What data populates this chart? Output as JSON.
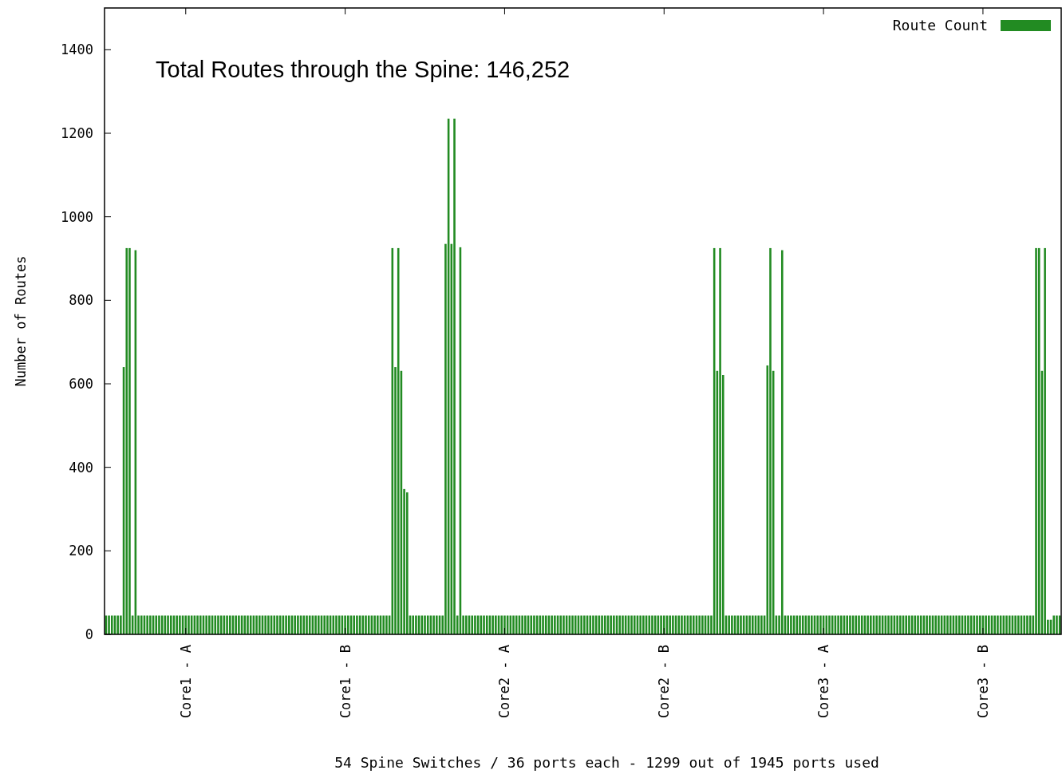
{
  "chart_data": {
    "type": "bar",
    "annotations": [
      "Total Routes through the Spine: 146,252"
    ],
    "xlabel": "54 Spine Switches / 36 ports each - 1299 out of 1945 ports used",
    "ylabel": "Number of Routes",
    "categories": [
      null,
      null,
      null,
      null,
      null,
      null,
      null,
      null,
      null,
      null,
      null,
      null,
      null,
      null,
      null,
      null,
      null,
      null,
      null,
      null,
      null,
      null,
      null,
      null,
      null,
      null,
      null,
      "Core1 - A",
      null,
      null,
      null,
      null,
      null,
      null,
      null,
      null,
      null,
      null,
      null,
      null,
      null,
      null,
      null,
      null,
      null,
      null,
      null,
      null,
      null,
      null,
      null,
      null,
      null,
      null,
      null,
      null,
      null,
      null,
      null,
      null,
      null,
      null,
      null,
      null,
      null,
      null,
      null,
      null,
      null,
      null,
      null,
      null,
      null,
      null,
      null,
      null,
      null,
      null,
      null,
      null,
      null,
      "Core1 - B",
      null,
      null,
      null,
      null,
      null,
      null,
      null,
      null,
      null,
      null,
      null,
      null,
      null,
      null,
      null,
      null,
      null,
      null,
      null,
      null,
      null,
      null,
      null,
      null,
      null,
      null,
      null,
      null,
      null,
      null,
      null,
      null,
      null,
      null,
      null,
      null,
      null,
      null,
      null,
      null,
      null,
      null,
      null,
      null,
      null,
      null,
      null,
      null,
      null,
      null,
      null,
      null,
      null,
      "Core2 - A",
      null,
      null,
      null,
      null,
      null,
      null,
      null,
      null,
      null,
      null,
      null,
      null,
      null,
      null,
      null,
      null,
      null,
      null,
      null,
      null,
      null,
      null,
      null,
      null,
      null,
      null,
      null,
      null,
      null,
      null,
      null,
      null,
      null,
      null,
      null,
      null,
      null,
      null,
      null,
      null,
      null,
      null,
      null,
      null,
      null,
      null,
      null,
      null,
      null,
      null,
      null,
      null,
      null,
      "Core2 - B",
      null,
      null,
      null,
      null,
      null,
      null,
      null,
      null,
      null,
      null,
      null,
      null,
      null,
      null,
      null,
      null,
      null,
      null,
      null,
      null,
      null,
      null,
      null,
      null,
      null,
      null,
      null,
      null,
      null,
      null,
      null,
      null,
      null,
      null,
      null,
      null,
      null,
      null,
      null,
      null,
      null,
      null,
      null,
      null,
      null,
      null,
      null,
      null,
      null,
      null,
      null,
      null,
      null,
      "Core3 - A",
      null,
      null,
      null,
      null,
      null,
      null,
      null,
      null,
      null,
      null,
      null,
      null,
      null,
      null,
      null,
      null,
      null,
      null,
      null,
      null,
      null,
      null,
      null,
      null,
      null,
      null,
      null,
      null,
      null,
      null,
      null,
      null,
      null,
      null,
      null,
      null,
      null,
      null,
      null,
      null,
      null,
      null,
      null,
      null,
      null,
      null,
      null,
      null,
      null,
      null,
      null,
      null,
      null,
      "Core3 - B",
      null,
      null,
      null,
      null,
      null,
      null,
      null,
      null,
      null,
      null,
      null,
      null,
      null,
      null,
      null,
      null,
      null,
      null,
      null,
      null,
      null,
      null,
      null,
      null,
      null,
      null
    ],
    "series": [
      {
        "name": "Route Count",
        "color": "#228b22",
        "values": [
          45,
          45,
          45,
          45,
          45,
          45,
          640,
          925,
          925,
          45,
          920,
          45,
          45,
          45,
          45,
          45,
          45,
          45,
          45,
          45,
          45,
          45,
          45,
          45,
          45,
          45,
          45,
          45,
          45,
          45,
          45,
          45,
          45,
          45,
          45,
          45,
          45,
          45,
          45,
          45,
          45,
          45,
          45,
          45,
          45,
          45,
          45,
          45,
          45,
          45,
          45,
          45,
          45,
          45,
          45,
          45,
          45,
          45,
          45,
          45,
          45,
          45,
          45,
          45,
          45,
          45,
          45,
          45,
          45,
          45,
          45,
          45,
          45,
          45,
          45,
          45,
          45,
          45,
          45,
          45,
          45,
          45,
          45,
          45,
          45,
          45,
          45,
          45,
          45,
          45,
          45,
          45,
          45,
          45,
          45,
          45,
          45,
          925,
          640,
          925,
          631,
          348,
          340,
          45,
          45,
          45,
          45,
          45,
          45,
          45,
          45,
          45,
          45,
          45,
          45,
          935,
          1235,
          935,
          1235,
          45,
          927,
          45,
          45,
          45,
          45,
          45,
          45,
          45,
          45,
          45,
          45,
          45,
          45,
          45,
          45,
          45,
          45,
          45,
          45,
          45,
          45,
          45,
          45,
          45,
          45,
          45,
          45,
          45,
          45,
          45,
          45,
          45,
          45,
          45,
          45,
          45,
          45,
          45,
          45,
          45,
          45,
          45,
          45,
          45,
          45,
          45,
          45,
          45,
          45,
          45,
          45,
          45,
          45,
          45,
          45,
          45,
          45,
          45,
          45,
          45,
          45,
          45,
          45,
          45,
          45,
          45,
          45,
          45,
          45,
          45,
          45,
          45,
          45,
          45,
          45,
          45,
          45,
          45,
          45,
          45,
          45,
          45,
          45,
          45,
          45,
          45,
          925,
          631,
          925,
          621,
          45,
          45,
          45,
          45,
          45,
          45,
          45,
          45,
          45,
          45,
          45,
          45,
          45,
          45,
          644,
          925,
          631,
          45,
          45,
          920,
          45,
          45,
          45,
          45,
          45,
          45,
          45,
          45,
          45,
          45,
          45,
          45,
          45,
          45,
          45,
          45,
          45,
          45,
          45,
          45,
          45,
          45,
          45,
          45,
          45,
          45,
          45,
          45,
          45,
          45,
          45,
          45,
          45,
          45,
          45,
          45,
          45,
          45,
          45,
          45,
          45,
          45,
          45,
          45,
          45,
          45,
          45,
          45,
          45,
          45,
          45,
          45,
          45,
          45,
          45,
          45,
          45,
          45,
          45,
          45,
          45,
          45,
          45,
          45,
          45,
          45,
          45,
          45,
          45,
          45,
          45,
          45,
          45,
          45,
          45,
          45,
          45,
          45,
          45,
          45,
          45,
          45,
          45,
          45,
          45,
          925,
          925,
          631,
          925,
          35,
          35,
          45,
          45,
          45
        ]
      }
    ],
    "ylim": [
      0,
      1500
    ],
    "yticks": [
      0,
      200,
      400,
      600,
      800,
      1000,
      1200,
      1400
    ],
    "legend": "top right",
    "grid": false
  }
}
